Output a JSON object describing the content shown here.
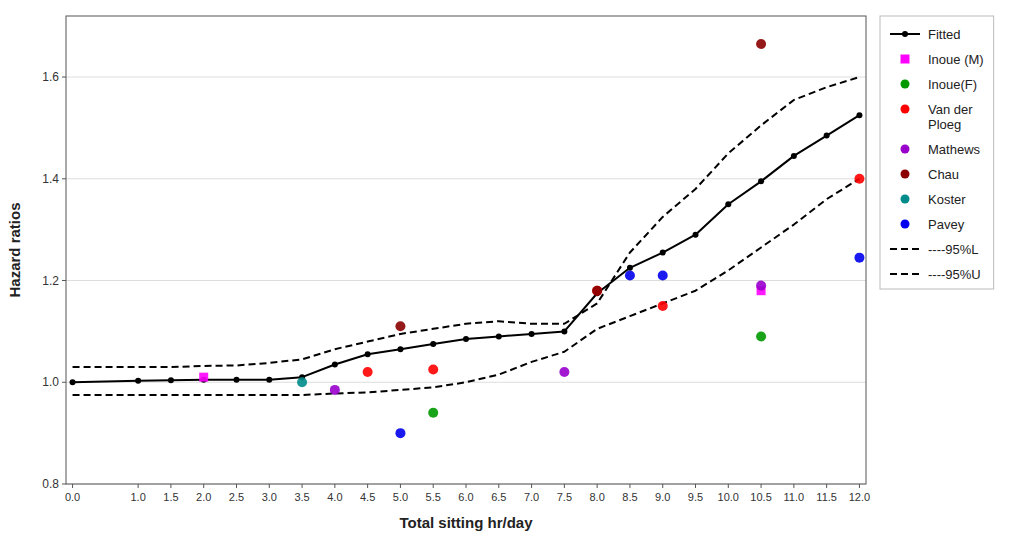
{
  "chart_data": {
    "type": "line",
    "xlabel": "Total sitting hr/day",
    "ylabel": "Hazard ratios",
    "xlim": [
      -0.1,
      12.1
    ],
    "ylim": [
      0.8,
      1.72
    ],
    "xticks": [
      {
        "value": 0.0,
        "label": "0.0"
      },
      {
        "value": 1.0,
        "label": "1.0"
      },
      1.5,
      {
        "value": 2.0,
        "label": "2.0"
      },
      2.5,
      {
        "value": 3.0,
        "label": "3.0"
      },
      3.5,
      {
        "value": 4.0,
        "label": "4.0"
      },
      4.5,
      {
        "value": 5.0,
        "label": "5.0"
      },
      5.5,
      {
        "value": 6.0,
        "label": "6.0"
      },
      6.5,
      {
        "value": 7.0,
        "label": "7.0"
      },
      7.5,
      {
        "value": 8.0,
        "label": "8.0"
      },
      8.5,
      {
        "value": 9.0,
        "label": "9.0"
      },
      9.5,
      {
        "value": 10.0,
        "label": "10.0"
      },
      10.5,
      {
        "value": 11.0,
        "label": "11.0"
      },
      11.5,
      {
        "value": 12.0,
        "label": "12.0"
      }
    ],
    "yticks": [
      0.8,
      {
        "value": 1.0,
        "label": "1.0"
      },
      1.2,
      1.4,
      1.6
    ],
    "grid": "y",
    "legend": "right",
    "series": [
      {
        "name": "Fitted",
        "type": "line",
        "color": "#000000",
        "marker": "circle",
        "line_style": "solid",
        "x": [
          0.0,
          1.0,
          1.5,
          2.0,
          2.5,
          3.0,
          3.5,
          4.0,
          4.5,
          5.0,
          5.5,
          6.0,
          6.5,
          7.0,
          7.5,
          8.0,
          8.5,
          9.0,
          9.5,
          10.0,
          10.5,
          11.0,
          11.5,
          12.0
        ],
        "values": [
          1.0,
          1.003,
          1.004,
          1.005,
          1.005,
          1.005,
          1.01,
          1.035,
          1.055,
          1.065,
          1.075,
          1.085,
          1.09,
          1.095,
          1.1,
          1.175,
          1.225,
          1.255,
          1.29,
          1.35,
          1.395,
          1.445,
          1.485,
          1.525
        ]
      },
      {
        "name": "Inoue (M)",
        "type": "scatter",
        "color": "#FF00FF",
        "marker": "square",
        "line_style": "none",
        "x": [
          2.0,
          10.5
        ],
        "values": [
          1.01,
          1.18
        ]
      },
      {
        "name": "Inoue(F)",
        "type": "scatter",
        "color": "#009900",
        "marker": "circle",
        "line_style": "none",
        "x": [
          5.5,
          10.5
        ],
        "values": [
          0.94,
          1.09
        ]
      },
      {
        "name": "Van der\nPloeg",
        "type": "scatter",
        "color": "#FF0000",
        "marker": "circle",
        "line_style": "none",
        "x": [
          4.5,
          5.5,
          8.0,
          9.0,
          12.0
        ],
        "values": [
          1.02,
          1.025,
          1.18,
          1.15,
          1.4
        ]
      },
      {
        "name": "Mathews",
        "type": "scatter",
        "color": "#9900CC",
        "marker": "circle",
        "line_style": "none",
        "x": [
          4.0,
          7.5,
          10.5
        ],
        "values": [
          0.985,
          1.02,
          1.19
        ]
      },
      {
        "name": "Chau",
        "type": "scatter",
        "color": "#8B0000",
        "marker": "circle",
        "line_style": "none",
        "x": [
          5.0,
          8.0,
          10.5
        ],
        "values": [
          1.11,
          1.18,
          1.665
        ]
      },
      {
        "name": "Koster",
        "type": "scatter",
        "color": "#008B8B",
        "marker": "circle",
        "line_style": "none",
        "x": [
          3.5
        ],
        "values": [
          1.0
        ]
      },
      {
        "name": "Pavey",
        "type": "scatter",
        "color": "#0000EE",
        "marker": "circle",
        "line_style": "none",
        "x": [
          5.0,
          8.5,
          9.0,
          12.0
        ],
        "values": [
          0.9,
          1.21,
          1.21,
          1.245
        ]
      },
      {
        "name": "----95%L",
        "type": "line",
        "color": "#000000",
        "marker": "none",
        "line_style": "dashed",
        "x": [
          0.0,
          1.0,
          1.5,
          2.0,
          2.5,
          3.0,
          3.5,
          4.0,
          4.5,
          5.0,
          5.5,
          6.0,
          6.5,
          7.0,
          7.5,
          8.0,
          8.5,
          9.0,
          9.5,
          10.0,
          10.5,
          11.0,
          11.5,
          12.0
        ],
        "values": [
          0.975,
          0.975,
          0.975,
          0.975,
          0.975,
          0.975,
          0.975,
          0.978,
          0.98,
          0.985,
          0.99,
          1.0,
          1.015,
          1.04,
          1.06,
          1.105,
          1.13,
          1.155,
          1.18,
          1.22,
          1.265,
          1.31,
          1.36,
          1.4
        ]
      },
      {
        "name": "----95%U",
        "type": "line",
        "color": "#000000",
        "marker": "none",
        "line_style": "dashed",
        "x": [
          0.0,
          1.0,
          1.5,
          2.0,
          2.5,
          3.0,
          3.5,
          4.0,
          4.5,
          5.0,
          5.5,
          6.0,
          6.5,
          7.0,
          7.5,
          8.0,
          8.5,
          9.0,
          9.5,
          10.0,
          10.5,
          11.0,
          11.5,
          12.0
        ],
        "values": [
          1.03,
          1.03,
          1.03,
          1.032,
          1.033,
          1.038,
          1.045,
          1.065,
          1.08,
          1.095,
          1.105,
          1.115,
          1.12,
          1.115,
          1.115,
          1.155,
          1.255,
          1.325,
          1.38,
          1.45,
          1.505,
          1.555,
          1.58,
          1.6
        ]
      }
    ]
  }
}
